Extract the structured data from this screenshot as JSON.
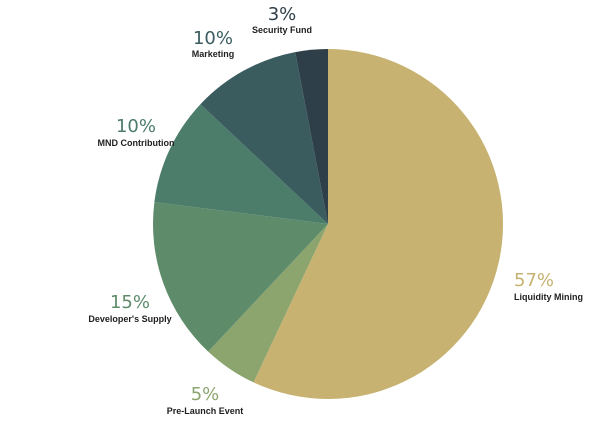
{
  "chart_data": {
    "type": "pie",
    "title": "",
    "slices": [
      {
        "label": "Liquidity Mining",
        "pct_label": "57%",
        "value": 57,
        "color": "#C7B271"
      },
      {
        "label": "Pre-Launch Event",
        "pct_label": "5%",
        "value": 5,
        "color": "#8CA46E"
      },
      {
        "label": "Developer's Supply",
        "pct_label": "15%",
        "value": 15,
        "color": "#5E8C6A"
      },
      {
        "label": "MND Contribution",
        "pct_label": "10%",
        "value": 10,
        "color": "#4C7C6A"
      },
      {
        "label": "Marketing",
        "pct_label": "10%",
        "value": 10,
        "color": "#3A5C5F"
      },
      {
        "label": "Security Fund",
        "pct_label": "3%",
        "value": 3,
        "color": "#2E3F4A"
      }
    ],
    "label_colors": {
      "Liquidity Mining": "#C7B271",
      "Pre-Launch Event": "#8CA46E",
      "Developer's Supply": "#5E8C6A",
      "MND Contribution": "#4C7C6A",
      "Marketing": "#3A5C5F",
      "Security Fund": "#2E3F4A"
    }
  }
}
